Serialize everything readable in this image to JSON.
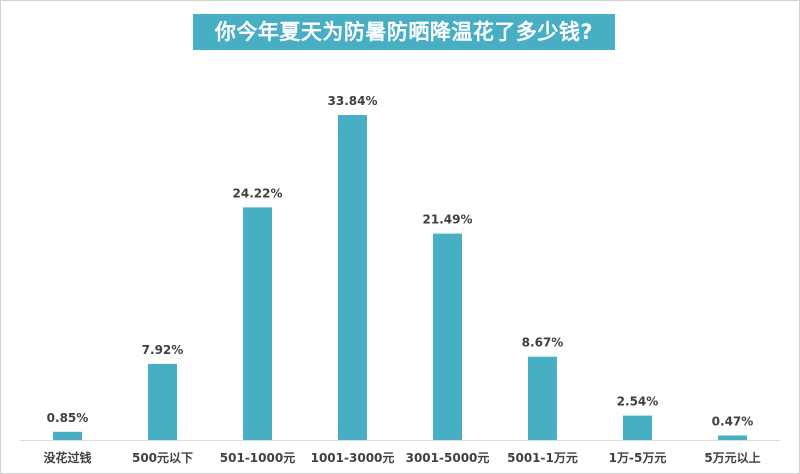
{
  "chart_data": {
    "type": "bar",
    "title": "你今年夏天为防暑防晒降温花了多少钱?",
    "categories": [
      "没花过钱",
      "500元以下",
      "501-1000元",
      "1001-3000元",
      "3001-5000元",
      "5001-1万元",
      "1万-5万元",
      "5万元以上"
    ],
    "values": [
      0.85,
      7.92,
      24.22,
      33.84,
      21.49,
      8.67,
      2.54,
      0.47
    ],
    "value_labels": [
      "0.85%",
      "7.92%",
      "24.22%",
      "33.84%",
      "21.49%",
      "8.67%",
      "2.54%",
      "0.47%"
    ],
    "ylim": [
      0,
      35
    ],
    "grid": false,
    "legend": "none",
    "bar_color": "#47aec4",
    "axis_color": "#d9d9d9"
  }
}
